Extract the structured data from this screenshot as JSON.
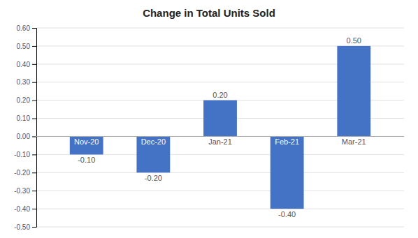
{
  "chart_data": {
    "type": "bar",
    "title": "Change in Total Units Sold",
    "categories": [
      "Nov-20",
      "Dec-20",
      "Jan-21",
      "Feb-21",
      "Mar-21"
    ],
    "values": [
      -0.1,
      -0.2,
      0.2,
      -0.4,
      0.5
    ],
    "value_labels": [
      "-0.10",
      "-0.20",
      "0.20",
      "-0.40",
      "0.50"
    ],
    "data_labels": true,
    "color": "#4472C4",
    "ylim": [
      -0.5,
      0.6
    ],
    "yticks": [
      {
        "value": -0.5,
        "label": "-0.50"
      },
      {
        "value": -0.4,
        "label": "-0.40"
      },
      {
        "value": -0.3,
        "label": "-0.30"
      },
      {
        "value": -0.2,
        "label": "-0.20"
      },
      {
        "value": -0.1,
        "label": "-0.10"
      },
      {
        "value": 0.0,
        "label": "0.00"
      },
      {
        "value": 0.1,
        "label": "0.10"
      },
      {
        "value": 0.2,
        "label": "0.20"
      },
      {
        "value": 0.3,
        "label": "0.30"
      },
      {
        "value": 0.4,
        "label": "0.40"
      },
      {
        "value": 0.5,
        "label": "0.50"
      },
      {
        "value": 0.6,
        "label": "0.60"
      }
    ],
    "grid": true
  }
}
